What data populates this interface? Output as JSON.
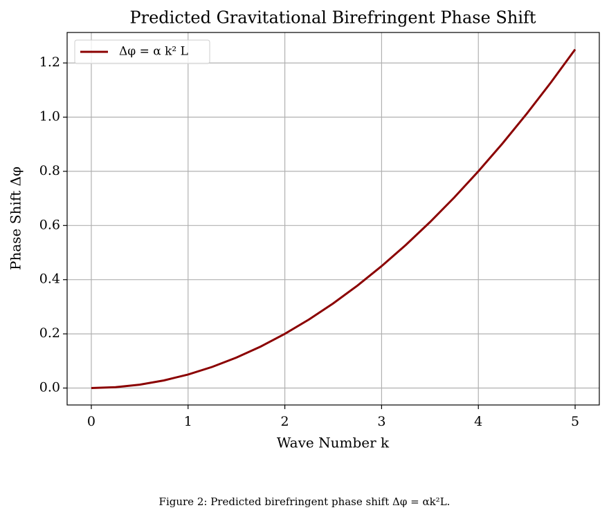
{
  "chart_data": {
    "type": "line",
    "title": "Predicted Gravitational Birefringent Phase Shift",
    "x_label": "Wave Number k",
    "y_label": "Phase Shift Δφ",
    "x": [
      0,
      0.25,
      0.5,
      0.75,
      1,
      1.25,
      1.5,
      1.75,
      2,
      2.25,
      2.5,
      2.75,
      3,
      3.25,
      3.5,
      3.75,
      4,
      4.25,
      4.5,
      4.75,
      5
    ],
    "series": [
      {
        "name": "Δφ = α k² L",
        "color": "#8b0000",
        "values": [
          0,
          0.003125,
          0.0125,
          0.028125,
          0.05,
          0.078125,
          0.1125,
          0.153125,
          0.2,
          0.253125,
          0.3125,
          0.378125,
          0.45,
          0.528125,
          0.6125,
          0.703125,
          0.8,
          0.903125,
          1.0125,
          1.128125,
          1.25
        ]
      }
    ],
    "xlim": [
      -0.25,
      5.25
    ],
    "ylim": [
      -0.0625,
      1.3125
    ],
    "xticks": [
      0,
      1,
      2,
      3,
      4,
      5
    ],
    "yticks": [
      {
        "value": 0,
        "label": "0.0"
      },
      0.2,
      0.4,
      0.6,
      0.8,
      {
        "value": 1,
        "label": "1.0"
      },
      1.2
    ],
    "grid": true,
    "legend_loc": "upper left"
  },
  "caption": "Figure 2: Predicted birefringent phase shift Δφ = αk²L."
}
